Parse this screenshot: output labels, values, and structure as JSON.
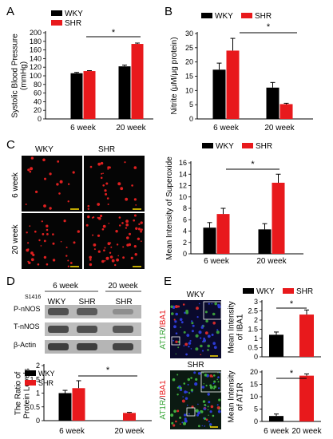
{
  "colors": {
    "wky": "#000000",
    "shr": "#e8191c",
    "micro_bg": "#050505",
    "blot_bg": "#b8b8b8",
    "scale_bar": "#ffe000"
  },
  "panels": {
    "a": {
      "letter": "A"
    },
    "b": {
      "letter": "B"
    },
    "c": {
      "letter": "C",
      "col_labels": [
        "WKY",
        "SHR"
      ],
      "row_labels": [
        "6 week",
        "20 week"
      ]
    },
    "d": {
      "letter": "D",
      "header_groups": [
        "6 week",
        "20 week"
      ],
      "lane_labels": [
        "WKY",
        "SHR",
        "SHR"
      ],
      "site_label": "S1416",
      "row_labels": [
        "P-nNOS",
        "T-nNOS",
        "β-Actin"
      ]
    },
    "e": {
      "letter": "E",
      "image_titles": [
        "WKY",
        "SHR"
      ],
      "side_labels": [
        {
          "green": "AT1R",
          "slash": "/",
          "red": "IBA1"
        },
        {
          "green": "AT1R",
          "slash": "/",
          "red": "IBA1"
        }
      ]
    }
  },
  "chart_data": [
    {
      "id": "A",
      "type": "bar",
      "categories": [
        "6 week",
        "20 week"
      ],
      "series": [
        {
          "name": "WKY",
          "values": [
            106,
            122
          ],
          "errors": [
            2,
            3
          ]
        },
        {
          "name": "SHR",
          "values": [
            111,
            174
          ],
          "errors": [
            1,
            2
          ]
        }
      ],
      "ylabel": [
        "Systolic Blood Pressure",
        "(mmHg)"
      ],
      "ylim": [
        0,
        200
      ],
      "yticks": [
        0,
        20,
        40,
        60,
        80,
        100,
        120,
        140,
        160,
        180,
        200
      ],
      "legend": [
        "WKY",
        "SHR"
      ],
      "legend_position": "top-left",
      "annotation": "*"
    },
    {
      "id": "B",
      "type": "bar",
      "categories": [
        "6 week",
        "20 week"
      ],
      "series": [
        {
          "name": "WKY",
          "values": [
            17.3,
            11
          ],
          "errors": [
            2.3,
            1.8
          ]
        },
        {
          "name": "SHR",
          "values": [
            24,
            5.2
          ],
          "errors": [
            4.3,
            0.3
          ]
        }
      ],
      "ylabel": [
        "Nitrite (μM/μg protein)"
      ],
      "ylim": [
        0,
        30
      ],
      "yticks": [
        0,
        5,
        10,
        15,
        20,
        25,
        30
      ],
      "legend": [
        "WKY",
        "SHR"
      ],
      "legend_position": "top",
      "annotation": "*"
    },
    {
      "id": "C",
      "type": "bar",
      "categories": [
        "6 week",
        "20 week"
      ],
      "series": [
        {
          "name": "WKY",
          "values": [
            4.6,
            4.3
          ],
          "errors": [
            0.9,
            1
          ]
        },
        {
          "name": "SHR",
          "values": [
            7,
            12.5
          ],
          "errors": [
            1,
            1.5
          ]
        }
      ],
      "ylabel": [
        "Mean Intensity of Superoxide"
      ],
      "ylim": [
        0,
        16
      ],
      "yticks": [
        0,
        2,
        4,
        6,
        8,
        10,
        12,
        14,
        16
      ],
      "legend": [
        "WKY",
        "SHR"
      ],
      "legend_position": "top",
      "annotation": "*"
    },
    {
      "id": "D",
      "type": "bar",
      "categories": [
        "6 week",
        "20 week"
      ],
      "series": [
        {
          "name": "WKY",
          "values": [
            1,
            null
          ],
          "errors": [
            0.1,
            null
          ]
        },
        {
          "name": "SHR",
          "values": [
            1.18,
            0.28
          ],
          "errors": [
            0.27,
            0.02
          ]
        }
      ],
      "ylabel": [
        "The Ratio of",
        "Protein Levels"
      ],
      "ylim": [
        0,
        2
      ],
      "yticks": [
        0,
        0.5,
        1,
        1.5,
        2
      ],
      "legend": [
        "WKY",
        "SHR"
      ],
      "legend_position": "top-left",
      "annotation": "*"
    },
    {
      "id": "E1",
      "type": "bar",
      "categories": [
        "6 week",
        "20 week"
      ],
      "series": [
        {
          "name": "WKY",
          "values": [
            1.2,
            null
          ],
          "errors": [
            0.15,
            null
          ]
        },
        {
          "name": "SHR",
          "values": [
            null,
            2.3
          ],
          "errors": [
            null,
            0.25
          ]
        }
      ],
      "ylabel": [
        "Mean Intensity",
        "of IBA1"
      ],
      "ylim": [
        0,
        3
      ],
      "yticks": [
        0,
        0.5,
        1,
        1.5,
        2,
        2.5,
        3
      ],
      "legend": [
        "WKY",
        "SHR"
      ],
      "legend_position": "top",
      "annotation": "*"
    },
    {
      "id": "E2",
      "type": "bar",
      "categories": [
        "6 week",
        "20 week"
      ],
      "series": [
        {
          "name": "WKY",
          "values": [
            2.2,
            null
          ],
          "errors": [
            0.8,
            null
          ]
        },
        {
          "name": "SHR",
          "values": [
            null,
            18.5
          ],
          "errors": [
            null,
            0.7
          ]
        }
      ],
      "ylabel": [
        "Mean Intensity",
        "of AT1R"
      ],
      "ylim": [
        0,
        20
      ],
      "yticks": [
        0,
        5,
        10,
        15,
        20
      ],
      "xticklabels_shown": true,
      "annotation": "*"
    }
  ]
}
